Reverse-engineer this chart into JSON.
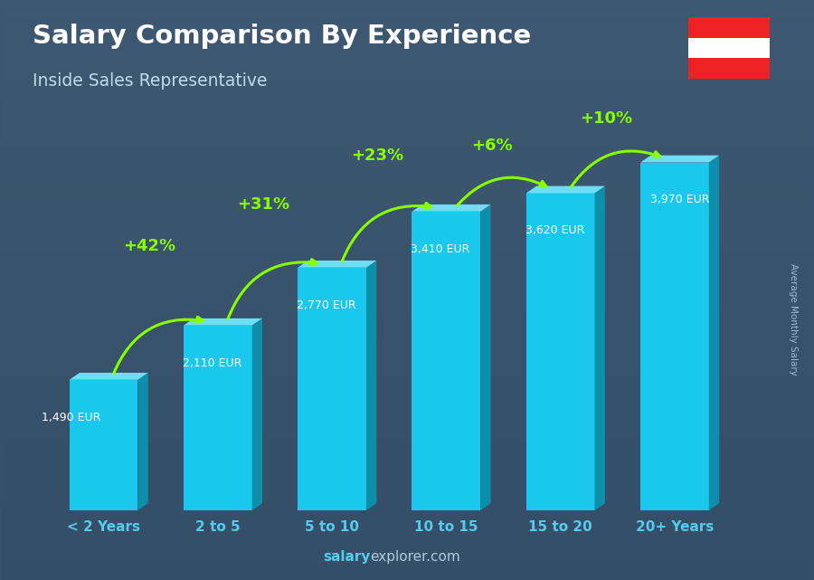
{
  "title": "Salary Comparison By Experience",
  "subtitle": "Inside Sales Representative",
  "ylabel": "Average Monthly Salary",
  "watermark_part1": "salary",
  "watermark_part2": "explorer.com",
  "categories": [
    "< 2 Years",
    "2 to 5",
    "5 to 10",
    "10 to 15",
    "15 to 20",
    "20+ Years"
  ],
  "values": [
    1490,
    2110,
    2770,
    3410,
    3620,
    3970
  ],
  "value_labels": [
    "1,490 EUR",
    "2,110 EUR",
    "2,770 EUR",
    "3,410 EUR",
    "3,620 EUR",
    "3,970 EUR"
  ],
  "pct_changes": [
    null,
    "+42%",
    "+31%",
    "+23%",
    "+6%",
    "+10%"
  ],
  "bar_color_main": "#1AC8ED",
  "bar_color_dark": "#0D8FAA",
  "bar_color_top": "#6DDFF5",
  "bg_color_top": "#4a6275",
  "bg_color_bottom": "#2a3d50",
  "title_color": "#FFFFFF",
  "subtitle_color": "#C0DCE8",
  "label_color": "#FFFFFF",
  "pct_color": "#88FF00",
  "arrow_color": "#88FF00",
  "tick_color": "#55CCEE",
  "ylabel_color": "#99BBCC",
  "watermark_salary_color": "#55CCEE",
  "watermark_explorer_color": "#AACCDD",
  "ylim": [
    0,
    4500
  ],
  "bar_width": 0.6,
  "figsize": [
    9.0,
    6.41
  ],
  "dpi": 100,
  "flag_red": "#EE2222",
  "flag_white": "#FFFFFF"
}
